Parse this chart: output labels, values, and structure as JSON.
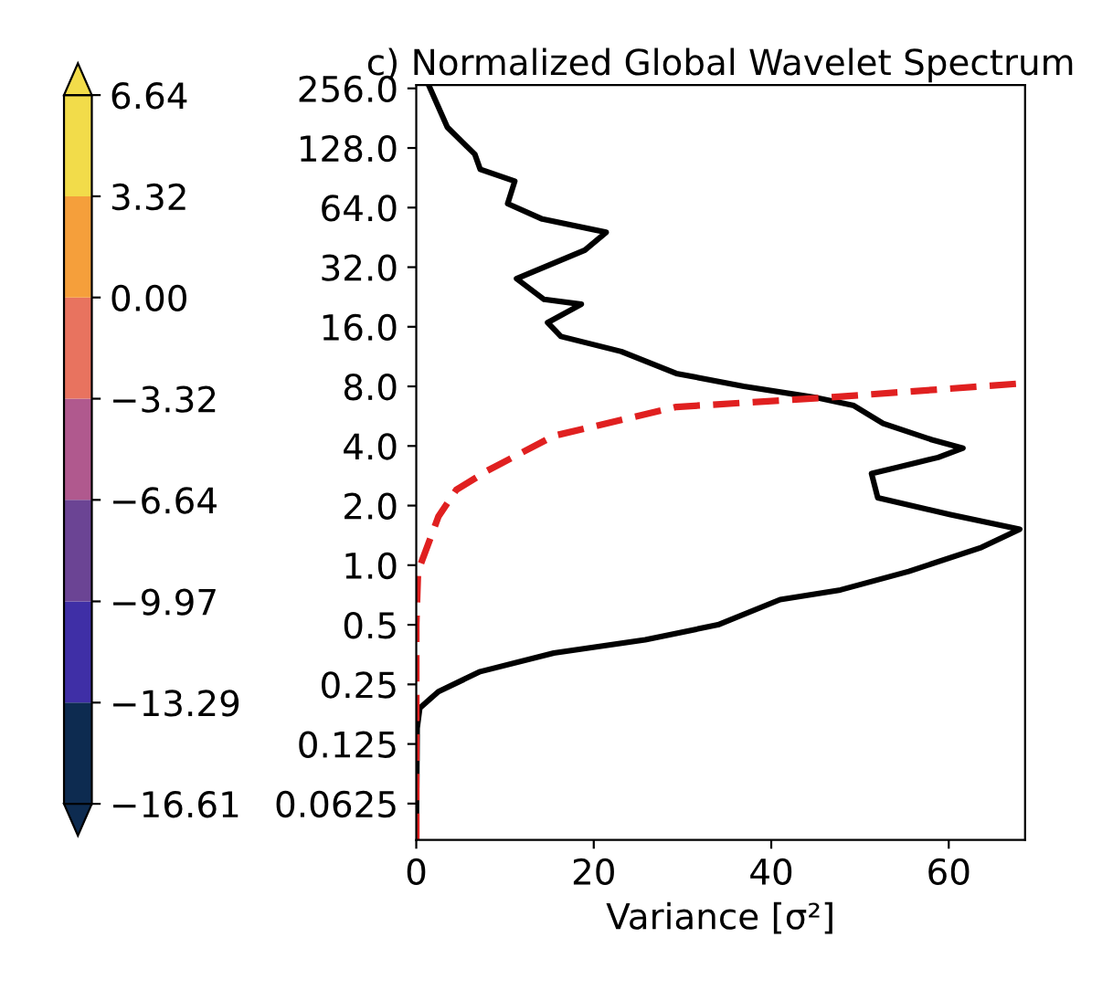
{
  "chart_data": {
    "type": "line",
    "orientation": "horizontal",
    "title": "c) Normalized Global Wavelet Spectrum",
    "xlabel": "Variance [σ²]",
    "log": "y",
    "xlim": [
      0,
      68.6
    ],
    "xticks": [
      0,
      20,
      40,
      60
    ],
    "ylim": [
      0.041,
      266
    ],
    "yticks": [
      0.0625,
      0.125,
      0.25,
      0.5,
      {
        "value": 1,
        "label": "1.0"
      },
      {
        "value": 2,
        "label": "2.0"
      },
      {
        "value": 4,
        "label": "4.0"
      },
      {
        "value": 8,
        "label": "8.0"
      },
      {
        "value": 16,
        "label": "16.0"
      },
      {
        "value": 32,
        "label": "32.0"
      },
      {
        "value": 64,
        "label": "64.0"
      },
      {
        "value": 128,
        "label": "128.0"
      },
      {
        "value": 256,
        "label": "256.0"
      }
    ],
    "grid": false,
    "legend": false,
    "clim": [
      -16.61,
      6.64
    ],
    "cticks": [
      {
        "value": -16.61,
        "label": "−16.61"
      },
      {
        "value": -13.29,
        "label": "−13.29"
      },
      {
        "value": -9.97,
        "label": "−9.97"
      },
      {
        "value": -6.64,
        "label": "−6.64"
      },
      {
        "value": -3.32,
        "label": "−3.32"
      },
      {
        "value": 0,
        "label": "0.00"
      },
      {
        "value": 3.32,
        "label": "3.32"
      },
      {
        "value": 6.64,
        "label": "6.64"
      }
    ],
    "colors": [
      "#0d2b50",
      "#3f2fa6",
      "#6b4494",
      "#b0598e",
      "#e8735f",
      "#f59f3b",
      "#f2dc4a"
    ],
    "series": [
      {
        "color": "#000000",
        "line_style": "solid",
        "x": [
          266,
          163,
          119,
          100,
          87,
          67,
          56,
          48,
          39,
          28,
          22,
          20.8,
          16.8,
          14.3,
          12,
          9.3,
          8,
          7,
          6.4,
          5.2,
          4.3,
          3.9,
          3.5,
          2.9,
          2.19,
          1.8,
          1.52,
          1.23,
          0.93,
          0.75,
          0.67,
          0.5,
          0.42,
          0.36,
          0.29,
          0.23,
          0.19,
          0.15,
          0.041
        ],
        "values": [
          1.4,
          3.5,
          6.6,
          7.2,
          11.1,
          10.3,
          14.2,
          21.4,
          19,
          11.3,
          14.4,
          18.6,
          14.8,
          16.3,
          23.1,
          29.3,
          36.9,
          45.2,
          49.3,
          52.6,
          58.1,
          61.6,
          58.8,
          51.3,
          52,
          60.2,
          68,
          63.7,
          55.5,
          47.8,
          41,
          34,
          25.8,
          15.5,
          7.2,
          2.5,
          0.4,
          0.1,
          0
        ]
      },
      {
        "color": "#e02020",
        "line_style": "dashed",
        "x": [
          0.041,
          0.5,
          0.93,
          1.76,
          2.4,
          3.0,
          4.5,
          6.3,
          7.0,
          8.3
        ],
        "values": [
          0,
          0,
          0.2,
          2.5,
          4.5,
          8,
          15.5,
          29.3,
          45.8,
          68.5
        ]
      }
    ]
  }
}
